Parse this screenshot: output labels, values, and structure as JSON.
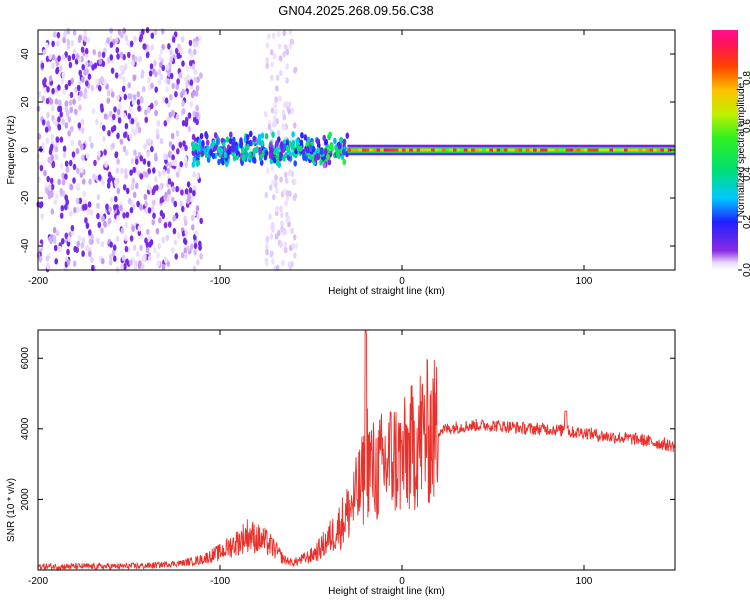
{
  "title": "GN04.2025.268.09.56.C38",
  "chart_data": [
    {
      "type": "heatmap",
      "title": "GN04.2025.268.09.56.C38",
      "xlabel": "Height of straight line (km)",
      "ylabel": "Frequency (Hz)",
      "xlim": [
        -200,
        150
      ],
      "ylim": [
        -50,
        50
      ],
      "x_ticks": [
        "-200",
        "-100",
        "0",
        "100"
      ],
      "y_ticks": [
        "-40",
        "-20",
        "0",
        "20",
        "40"
      ],
      "x_tick_values": [
        -200,
        -100,
        0,
        100
      ],
      "y_tick_values": [
        -40,
        -20,
        0,
        20,
        40
      ],
      "colorbar": {
        "label": "Normalized spectral amplitude",
        "range": [
          0,
          1
        ],
        "ticks": [
          "0.0",
          "0.2",
          "0.4",
          "0.6",
          "0.8"
        ],
        "tick_values": [
          0.0,
          0.2,
          0.4,
          0.6,
          0.8
        ],
        "colormap": "rainbow"
      },
      "description_regions": [
        {
          "x_range": [
            -200,
            -110
          ],
          "freq_range": [
            -50,
            50
          ],
          "amplitude": 0.05
        },
        {
          "x_range": [
            -75,
            -58
          ],
          "freq_range": [
            -50,
            50
          ],
          "amplitude": 0.03
        },
        {
          "x_range": [
            -115,
            -30
          ],
          "freq_range": [
            -8,
            8
          ],
          "amplitude": 0.35
        },
        {
          "x_range": [
            -30,
            150
          ],
          "freq_range": [
            -1,
            1
          ],
          "amplitude": 0.9
        }
      ]
    },
    {
      "type": "line",
      "xlabel": "Height of straight line (km)",
      "ylabel": "SNR (10 * v/v)",
      "xlim": [
        -200,
        150
      ],
      "ylim": [
        0,
        6800
      ],
      "x_ticks": [
        "-200",
        "-100",
        "0",
        "100"
      ],
      "y_ticks": [
        "2000",
        "4000",
        "6000"
      ],
      "x_tick_values": [
        -200,
        -100,
        0,
        100
      ],
      "y_tick_values": [
        2000,
        4000,
        6000
      ],
      "series": [
        {
          "name": "SNR",
          "color": "#e8312b",
          "x": [
            -200,
            -180,
            -160,
            -140,
            -120,
            -110,
            -100,
            -90,
            -85,
            -80,
            -75,
            -70,
            -65,
            -60,
            -55,
            -50,
            -45,
            -40,
            -35,
            -30,
            -25,
            -21,
            -20,
            -19,
            -15,
            -10,
            -5,
            0,
            5,
            10,
            15,
            20,
            25,
            30,
            40,
            50,
            60,
            70,
            80,
            88,
            90,
            92,
            100,
            110,
            120,
            130,
            140,
            150
          ],
          "values": [
            100,
            100,
            100,
            120,
            200,
            300,
            500,
            800,
            1000,
            900,
            800,
            600,
            300,
            200,
            300,
            400,
            600,
            900,
            1200,
            1600,
            2100,
            2600,
            6800,
            3200,
            2700,
            3000,
            3200,
            3100,
            3400,
            3800,
            3900,
            3950,
            4000,
            4050,
            4100,
            4100,
            4050,
            4000,
            4000,
            3950,
            4200,
            3900,
            3900,
            3800,
            3750,
            3700,
            3600,
            3500
          ]
        }
      ]
    }
  ]
}
